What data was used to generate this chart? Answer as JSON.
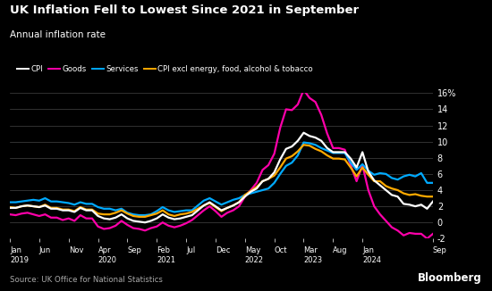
{
  "title": "UK Inflation Fell to Lowest Since 2021 in September",
  "subtitle": "Annual inflation rate",
  "source": "Source: UK Office for National Statistics",
  "bloomberg": "Bloomberg",
  "background_color": "#000000",
  "text_color": "#ffffff",
  "grid_color": "#444444",
  "ylim": [
    -2,
    16
  ],
  "yticks": [
    -2,
    0,
    2,
    4,
    6,
    8,
    10,
    12,
    14,
    16
  ],
  "ytick_labels": [
    "-2",
    "0",
    "2",
    "4",
    "6",
    "8",
    "10",
    "12",
    "14",
    "16%"
  ],
  "series": {
    "CPI": {
      "color": "#ffffff",
      "linewidth": 1.6,
      "values": [
        1.8,
        1.8,
        2.0,
        2.1,
        2.0,
        1.9,
        2.1,
        1.7,
        1.7,
        1.5,
        1.5,
        1.3,
        1.8,
        1.5,
        1.5,
        0.8,
        0.5,
        0.4,
        0.6,
        1.0,
        0.5,
        0.2,
        0.1,
        0.0,
        0.2,
        0.5,
        1.0,
        0.6,
        0.4,
        0.5,
        0.7,
        0.9,
        1.5,
        2.1,
        2.5,
        2.0,
        1.5,
        1.8,
        2.1,
        2.5,
        3.2,
        3.8,
        4.2,
        5.1,
        5.4,
        6.2,
        7.8,
        9.1,
        9.4,
        10.1,
        11.1,
        10.7,
        10.5,
        10.1,
        9.2,
        8.7,
        8.7,
        8.7,
        7.9,
        6.8,
        8.7,
        6.3,
        5.2,
        4.6,
        4.0,
        3.4,
        3.2,
        2.3,
        2.2,
        2.0,
        2.2,
        1.7,
        2.6
      ]
    },
    "Goods": {
      "color": "#ff00aa",
      "linewidth": 1.6,
      "values": [
        1.0,
        0.9,
        1.1,
        1.2,
        1.0,
        0.8,
        1.0,
        0.6,
        0.6,
        0.3,
        0.5,
        0.2,
        0.9,
        0.5,
        0.5,
        -0.5,
        -0.8,
        -0.7,
        -0.4,
        0.2,
        -0.3,
        -0.7,
        -0.8,
        -1.0,
        -0.7,
        -0.5,
        0.0,
        -0.4,
        -0.6,
        -0.4,
        -0.1,
        0.3,
        0.9,
        1.5,
        2.0,
        1.4,
        0.7,
        1.2,
        1.5,
        2.0,
        3.2,
        4.0,
        4.9,
        6.5,
        7.1,
        8.5,
        11.7,
        14.0,
        13.9,
        14.6,
        16.4,
        15.4,
        14.9,
        13.3,
        11.0,
        9.2,
        9.2,
        9.0,
        7.1,
        5.1,
        7.1,
        4.0,
        2.0,
        1.0,
        0.2,
        -0.6,
        -1.0,
        -1.6,
        -1.3,
        -1.4,
        -1.4,
        -2.0,
        -1.4
      ]
    },
    "Services": {
      "color": "#00aaff",
      "linewidth": 1.6,
      "values": [
        2.5,
        2.5,
        2.6,
        2.7,
        2.8,
        2.7,
        3.0,
        2.6,
        2.6,
        2.5,
        2.4,
        2.2,
        2.5,
        2.3,
        2.3,
        1.9,
        1.7,
        1.7,
        1.5,
        1.7,
        1.2,
        1.0,
        0.9,
        0.9,
        1.0,
        1.4,
        1.9,
        1.5,
        1.3,
        1.4,
        1.5,
        1.5,
        2.1,
        2.7,
        3.0,
        2.6,
        2.2,
        2.5,
        2.8,
        3.0,
        3.4,
        3.6,
        3.8,
        4.0,
        4.2,
        4.9,
        6.0,
        7.0,
        7.4,
        8.3,
        9.9,
        9.8,
        9.6,
        9.2,
        8.9,
        8.6,
        8.6,
        8.6,
        7.4,
        6.5,
        7.2,
        6.4,
        5.9,
        6.1,
        6.0,
        5.5,
        5.3,
        5.7,
        5.9,
        5.7,
        6.1,
        4.9,
        4.9
      ]
    },
    "CPI_core": {
      "color": "#ffaa00",
      "linewidth": 1.6,
      "values": [
        1.9,
        1.8,
        2.0,
        2.1,
        2.0,
        1.9,
        2.2,
        1.8,
        1.8,
        1.6,
        1.6,
        1.4,
        1.9,
        1.6,
        1.6,
        1.1,
        1.0,
        1.0,
        1.2,
        1.5,
        1.1,
        0.8,
        0.7,
        0.7,
        0.9,
        1.1,
        1.5,
        1.0,
        0.8,
        1.0,
        1.1,
        1.3,
        1.7,
        2.1,
        2.4,
        1.9,
        1.4,
        1.8,
        2.1,
        2.5,
        3.4,
        3.9,
        4.4,
        5.1,
        5.4,
        5.8,
        6.8,
        7.9,
        8.2,
        8.8,
        9.6,
        9.5,
        9.1,
        8.8,
        8.3,
        7.9,
        7.9,
        7.8,
        6.8,
        5.7,
        6.8,
        5.9,
        5.1,
        5.1,
        4.5,
        4.2,
        4.0,
        3.6,
        3.4,
        3.5,
        3.3,
        3.2,
        3.2
      ]
    }
  },
  "x_tick_positions": [
    0,
    5,
    10,
    15,
    20,
    25,
    30,
    35,
    40,
    45,
    50,
    55,
    60,
    72
  ],
  "x_tick_labels": [
    "Jan\n2019",
    "Jun",
    "Nov",
    "Apr\n2020",
    "Sep",
    "Feb\n2021",
    "Jul",
    "Dec",
    "May\n2022",
    "Oct",
    "Mar\n2023",
    "Aug",
    "Jan\n2024",
    "Sep"
  ]
}
